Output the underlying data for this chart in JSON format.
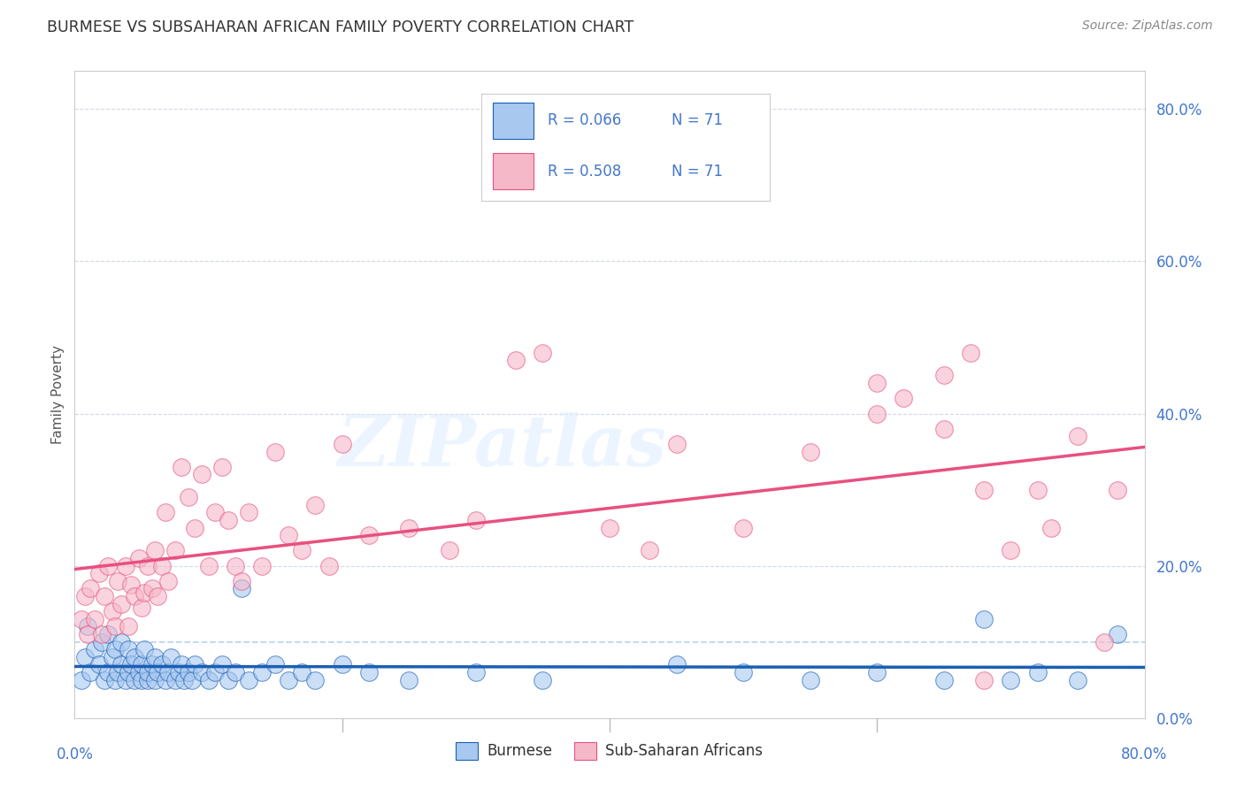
{
  "title": "BURMESE VS SUBSAHARAN AFRICAN FAMILY POVERTY CORRELATION CHART",
  "source": "Source: ZipAtlas.com",
  "ylabel": "Family Poverty",
  "ytick_labels": [
    "0.0%",
    "20.0%",
    "40.0%",
    "60.0%",
    "80.0%"
  ],
  "ytick_values": [
    0.0,
    0.2,
    0.4,
    0.6,
    0.8
  ],
  "xlim": [
    0.0,
    0.8
  ],
  "ylim": [
    0.0,
    0.85
  ],
  "blue_color": "#a8c8f0",
  "pink_color": "#f5b8c8",
  "blue_line_color": "#1a5fb4",
  "pink_line_color": "#e85080",
  "legend_label1": "Burmese",
  "legend_label2": "Sub-Saharan Africans",
  "watermark": "ZIPatlas",
  "blue_x": [
    0.005,
    0.008,
    0.01,
    0.012,
    0.015,
    0.018,
    0.02,
    0.022,
    0.025,
    0.025,
    0.028,
    0.03,
    0.03,
    0.032,
    0.035,
    0.035,
    0.038,
    0.04,
    0.04,
    0.042,
    0.045,
    0.045,
    0.048,
    0.05,
    0.05,
    0.052,
    0.055,
    0.055,
    0.058,
    0.06,
    0.06,
    0.062,
    0.065,
    0.068,
    0.07,
    0.072,
    0.075,
    0.078,
    0.08,
    0.082,
    0.085,
    0.088,
    0.09,
    0.095,
    0.1,
    0.105,
    0.11,
    0.115,
    0.12,
    0.125,
    0.13,
    0.14,
    0.15,
    0.16,
    0.17,
    0.18,
    0.2,
    0.22,
    0.25,
    0.3,
    0.35,
    0.45,
    0.5,
    0.55,
    0.6,
    0.65,
    0.68,
    0.7,
    0.72,
    0.75,
    0.78
  ],
  "blue_y": [
    0.05,
    0.08,
    0.12,
    0.06,
    0.09,
    0.07,
    0.1,
    0.05,
    0.06,
    0.11,
    0.08,
    0.05,
    0.09,
    0.06,
    0.07,
    0.1,
    0.05,
    0.06,
    0.09,
    0.07,
    0.05,
    0.08,
    0.06,
    0.05,
    0.07,
    0.09,
    0.05,
    0.06,
    0.07,
    0.05,
    0.08,
    0.06,
    0.07,
    0.05,
    0.06,
    0.08,
    0.05,
    0.06,
    0.07,
    0.05,
    0.06,
    0.05,
    0.07,
    0.06,
    0.05,
    0.06,
    0.07,
    0.05,
    0.06,
    0.17,
    0.05,
    0.06,
    0.07,
    0.05,
    0.06,
    0.05,
    0.07,
    0.06,
    0.05,
    0.06,
    0.05,
    0.07,
    0.06,
    0.05,
    0.06,
    0.05,
    0.13,
    0.05,
    0.06,
    0.05,
    0.11
  ],
  "pink_x": [
    0.005,
    0.008,
    0.01,
    0.012,
    0.015,
    0.018,
    0.02,
    0.022,
    0.025,
    0.028,
    0.03,
    0.032,
    0.035,
    0.038,
    0.04,
    0.042,
    0.045,
    0.048,
    0.05,
    0.052,
    0.055,
    0.058,
    0.06,
    0.062,
    0.065,
    0.068,
    0.07,
    0.075,
    0.08,
    0.085,
    0.09,
    0.095,
    0.1,
    0.105,
    0.11,
    0.115,
    0.12,
    0.125,
    0.13,
    0.14,
    0.15,
    0.16,
    0.17,
    0.18,
    0.19,
    0.2,
    0.22,
    0.25,
    0.28,
    0.3,
    0.33,
    0.35,
    0.4,
    0.43,
    0.45,
    0.5,
    0.55,
    0.6,
    0.65,
    0.68,
    0.7,
    0.72,
    0.73,
    0.75,
    0.77,
    0.78,
    0.6,
    0.62,
    0.65,
    0.67,
    0.68
  ],
  "pink_y": [
    0.13,
    0.16,
    0.11,
    0.17,
    0.13,
    0.19,
    0.11,
    0.16,
    0.2,
    0.14,
    0.12,
    0.18,
    0.15,
    0.2,
    0.12,
    0.175,
    0.16,
    0.21,
    0.145,
    0.165,
    0.2,
    0.17,
    0.22,
    0.16,
    0.2,
    0.27,
    0.18,
    0.22,
    0.33,
    0.29,
    0.25,
    0.32,
    0.2,
    0.27,
    0.33,
    0.26,
    0.2,
    0.18,
    0.27,
    0.2,
    0.35,
    0.24,
    0.22,
    0.28,
    0.2,
    0.36,
    0.24,
    0.25,
    0.22,
    0.26,
    0.47,
    0.48,
    0.25,
    0.22,
    0.36,
    0.25,
    0.35,
    0.4,
    0.38,
    0.3,
    0.22,
    0.3,
    0.25,
    0.37,
    0.1,
    0.3,
    0.44,
    0.42,
    0.45,
    0.48,
    0.05
  ]
}
